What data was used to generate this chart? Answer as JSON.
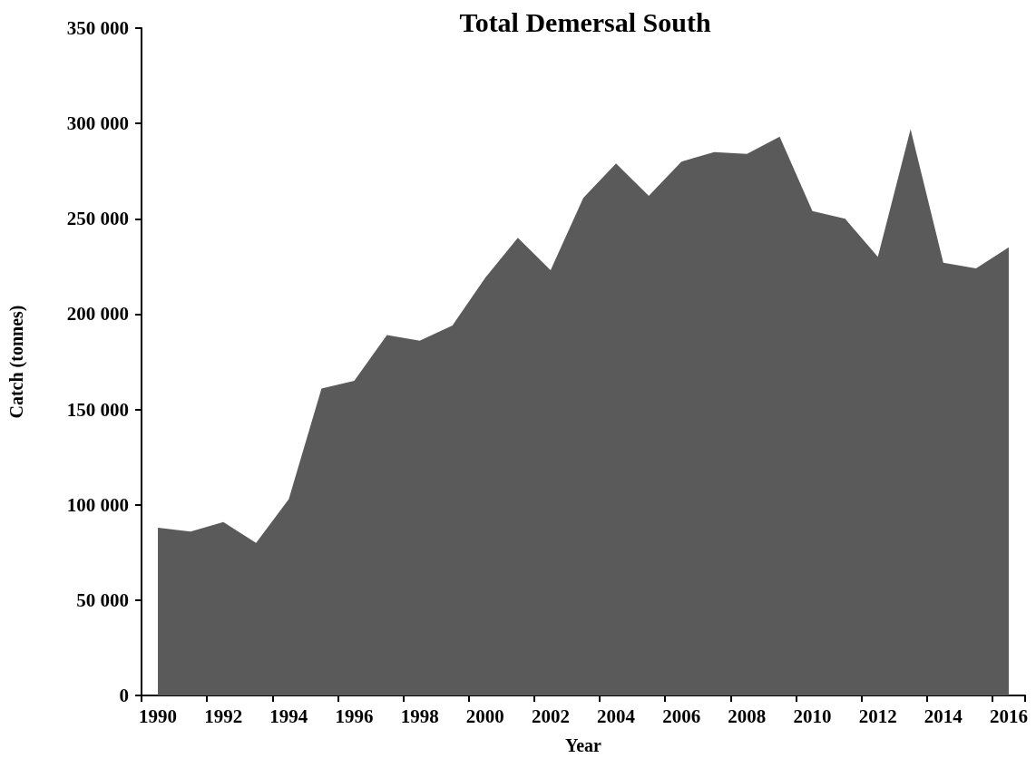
{
  "chart_data": {
    "type": "area",
    "title": "Total Demersal South",
    "xlabel": "Year",
    "ylabel": "Catch (tonnes)",
    "categories": [
      "1990",
      null,
      "1992",
      null,
      "1994",
      null,
      "1996",
      null,
      "1998",
      null,
      "2000",
      null,
      "2002",
      null,
      "2004",
      null,
      "2006",
      null,
      "2008",
      null,
      "2010",
      null,
      "2012",
      null,
      "2014",
      null,
      "2016"
    ],
    "values": [
      88000,
      86000,
      91000,
      80000,
      103000,
      161000,
      165000,
      189000,
      186000,
      194000,
      219000,
      240000,
      223000,
      261000,
      279000,
      262000,
      280000,
      285000,
      284000,
      293000,
      254000,
      250000,
      230000,
      297000,
      227000,
      224000,
      235000
    ],
    "color": "#5a5a5a",
    "ylim": [
      0,
      350000
    ],
    "yticks": [
      {
        "value": 0,
        "label": "0"
      },
      {
        "value": 50000,
        "label": "50 000"
      },
      {
        "value": 100000,
        "label": "100 000"
      },
      {
        "value": 150000,
        "label": "150 000"
      },
      {
        "value": 200000,
        "label": "200 000"
      },
      {
        "value": 250000,
        "label": "250 000"
      },
      {
        "value": 300000,
        "label": "300 000"
      },
      {
        "value": 350000,
        "label": "350 000"
      }
    ],
    "grid": false
  }
}
